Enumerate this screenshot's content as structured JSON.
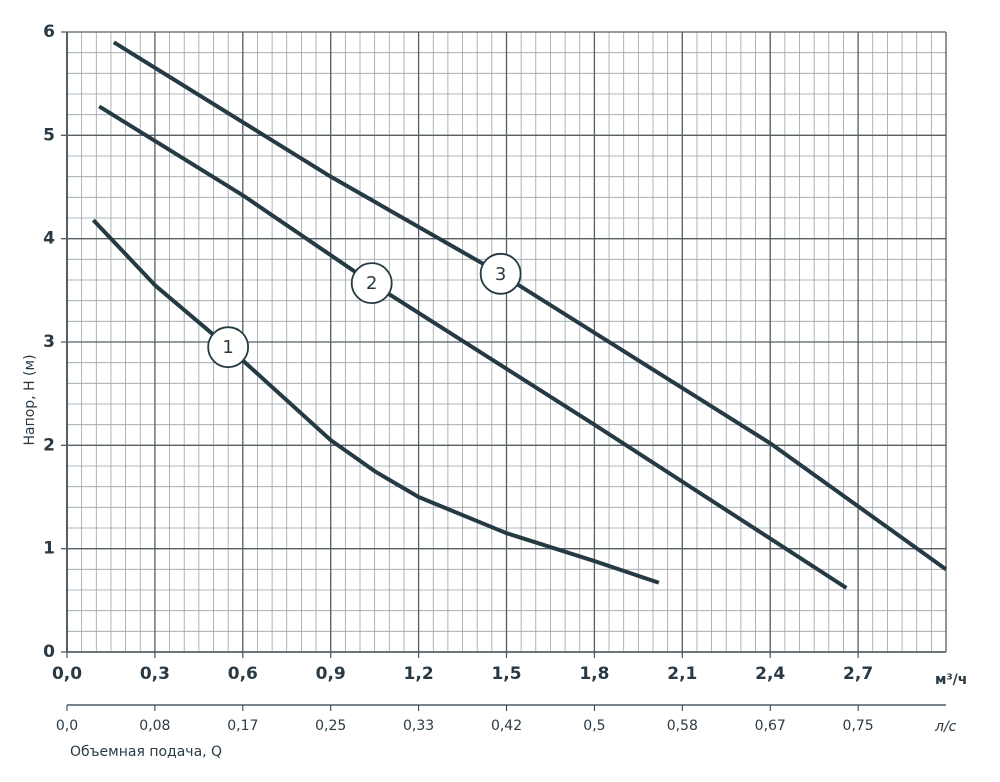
{
  "chart_data": {
    "type": "line",
    "y_label": "Напор, H (м)",
    "x_label": "Объемная подача, Q",
    "x_unit": "м³/ч",
    "x2_unit": "л/с",
    "xlim": [
      0,
      3.0
    ],
    "xticks": [
      {
        "value": 0,
        "label": "0,0"
      },
      {
        "value": 0.3,
        "label": "0,3"
      },
      {
        "value": 0.6,
        "label": "0,6"
      },
      {
        "value": 0.9,
        "label": "0,9"
      },
      {
        "value": 1.2,
        "label": "1,2"
      },
      {
        "value": 1.5,
        "label": "1,5"
      },
      {
        "value": 1.8,
        "label": "1,8"
      },
      {
        "value": 2.1,
        "label": "2,1"
      },
      {
        "value": 2.4,
        "label": "2,4"
      },
      {
        "value": 2.7,
        "label": "2,7"
      }
    ],
    "x2lim": [
      0,
      0.8333
    ],
    "x2ticks": [
      {
        "value": 0,
        "label": "0,0"
      },
      {
        "value": 0.0833,
        "label": "0,08"
      },
      {
        "value": 0.1667,
        "label": "0,17"
      },
      {
        "value": 0.25,
        "label": "0,25"
      },
      {
        "value": 0.3333,
        "label": "0,33"
      },
      {
        "value": 0.4167,
        "label": "0,42"
      },
      {
        "value": 0.5,
        "label": "0,5"
      },
      {
        "value": 0.5833,
        "label": "0,58"
      },
      {
        "value": 0.6667,
        "label": "0,67"
      },
      {
        "value": 0.75,
        "label": "0,75"
      }
    ],
    "ylim": [
      0,
      6
    ],
    "yticks": [
      0,
      1,
      2,
      3,
      4,
      5,
      6
    ],
    "grid": true,
    "series": [
      {
        "name": "1",
        "color": "#263a44",
        "x": [
          0.09,
          0.3,
          0.55,
          0.9,
          1.05,
          1.2,
          1.5,
          1.8,
          2.02
        ],
        "values": [
          4.18,
          3.55,
          2.95,
          2.05,
          1.75,
          1.5,
          1.15,
          0.88,
          0.67
        ]
      },
      {
        "name": "2",
        "color": "#263a44",
        "x": [
          0.11,
          0.6,
          1.04,
          1.8,
          2.66
        ],
        "values": [
          5.28,
          4.42,
          3.57,
          2.2,
          0.62
        ]
      },
      {
        "name": "3",
        "color": "#263a44",
        "x": [
          0.16,
          0.9,
          1.48,
          2.4,
          3.0
        ],
        "values": [
          5.9,
          4.6,
          3.66,
          2.02,
          0.8
        ]
      }
    ]
  }
}
